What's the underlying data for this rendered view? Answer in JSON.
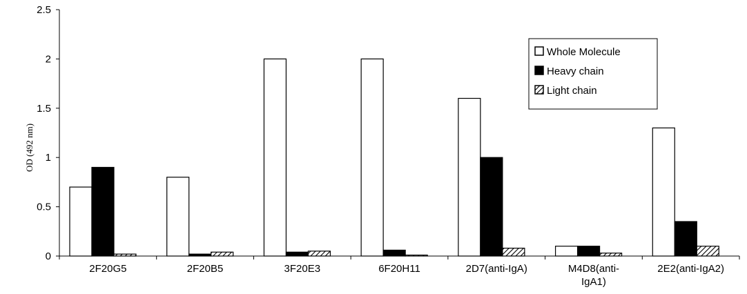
{
  "chart_data": {
    "type": "bar",
    "title": "",
    "xlabel": "",
    "ylabel": "OD (492 nm)",
    "ylim": [
      0,
      2.5
    ],
    "yticks": [
      "0",
      "0.5",
      "1",
      "1.5",
      "2",
      "2.5"
    ],
    "grid": false,
    "legend_position": "top-right",
    "categories": [
      [
        "2F20G5"
      ],
      [
        "2F20B5"
      ],
      [
        "3F20E3"
      ],
      [
        "6F20H11"
      ],
      [
        "2D7(anti-IgA)"
      ],
      [
        "M4D8(anti-",
        "IgA1)"
      ],
      [
        "2E2(anti-IgA2)"
      ]
    ],
    "series": [
      {
        "name": "Whole Molecule",
        "fill": "#ffffff",
        "pattern": "none",
        "values": [
          0.7,
          0.8,
          2.0,
          2.0,
          1.6,
          0.1,
          1.3
        ]
      },
      {
        "name": "Heavy chain",
        "fill": "#000000",
        "pattern": "none",
        "values": [
          0.9,
          0.02,
          0.04,
          0.06,
          1.0,
          0.1,
          0.35
        ]
      },
      {
        "name": "Light chain",
        "fill": "#ffffff",
        "pattern": "diagonal-hatch",
        "values": [
          0.02,
          0.04,
          0.05,
          0.01,
          0.08,
          0.03,
          0.1
        ]
      }
    ]
  }
}
